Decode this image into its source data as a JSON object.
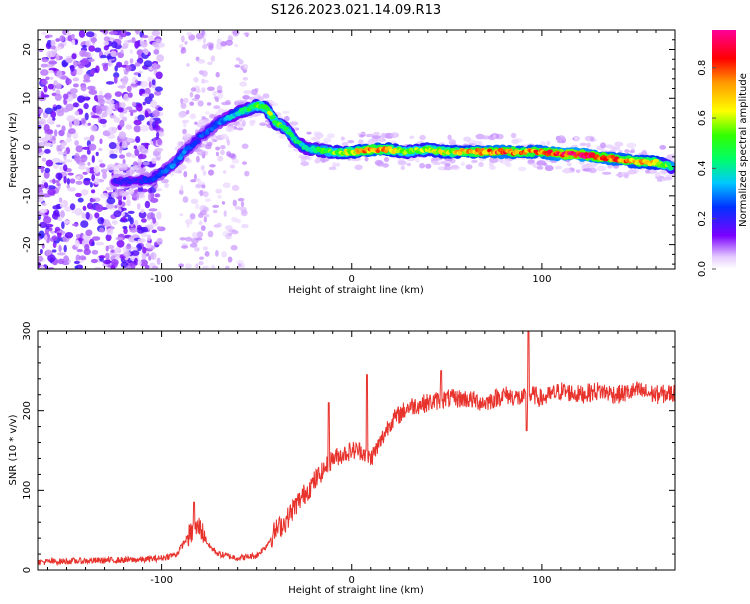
{
  "title": "S126.2023.021.14.09.R13",
  "colors": {
    "snr_line": "#e8322c",
    "ridge_low": "#5a00ff",
    "ridge_high": "#ff0033",
    "scatter": "#8a3cf0"
  },
  "chart_data": [
    {
      "type": "heatmap",
      "xlabel": "Height of straight line (km)",
      "ylabel": "Frequency (Hz)",
      "xlim": [
        -165,
        170
      ],
      "ylim": [
        -25,
        24
      ],
      "x_ticks": [
        -100,
        0,
        100
      ],
      "y_ticks": [
        -20,
        -10,
        0,
        10,
        20
      ],
      "colorbar": {
        "label": "Normalized spectral amplitude",
        "range": [
          0,
          0.95
        ],
        "ticks": [
          0.0,
          0.2,
          0.4,
          0.6,
          0.8
        ],
        "tick_labels": [
          "0.0",
          "0.2",
          "0.4",
          "0.6",
          "0.8"
        ],
        "colormap": "rainbow"
      },
      "ridge": {
        "x": [
          -125,
          -115,
          -105,
          -95,
          -88,
          -80,
          -70,
          -60,
          -50,
          -45,
          -40,
          -35,
          -30,
          -25,
          -20,
          -10,
          0,
          10,
          20,
          30,
          40,
          50,
          60,
          70,
          80,
          90,
          100,
          110,
          120,
          130,
          140,
          150,
          160,
          168
        ],
        "y": [
          -7,
          -7,
          -6.5,
          -4,
          -1,
          2,
          5,
          7,
          8.5,
          8,
          5,
          4,
          1.5,
          0,
          -0.5,
          -1,
          -1,
          -0.5,
          -0.5,
          -1,
          -0.5,
          -1,
          -1,
          -1,
          -1,
          -1,
          -1,
          -1.5,
          -1.5,
          -2,
          -2.5,
          -3,
          -3.2,
          -4
        ],
        "amplitude": [
          0.2,
          0.2,
          0.25,
          0.3,
          0.3,
          0.25,
          0.3,
          0.4,
          0.55,
          0.6,
          0.55,
          0.5,
          0.45,
          0.4,
          0.45,
          0.55,
          0.65,
          0.8,
          0.7,
          0.55,
          0.6,
          0.65,
          0.7,
          0.8,
          0.85,
          0.75,
          0.8,
          0.9,
          0.9,
          0.85,
          0.8,
          0.75,
          0.7,
          0.5
        ]
      }
    },
    {
      "type": "line",
      "xlabel": "Height of straight line (km)",
      "ylabel": "SNR (10 * v/v)",
      "xlim": [
        -165,
        170
      ],
      "ylim": [
        0,
        300
      ],
      "x_ticks": [
        -100,
        0,
        100
      ],
      "y_ticks": [
        0,
        100,
        200,
        300
      ],
      "series": [
        {
          "x": [
            -165,
            -150,
            -130,
            -110,
            -100,
            -92,
            -88,
            -85,
            -80,
            -75,
            -70,
            -60,
            -50,
            -45,
            -40,
            -35,
            -30,
            -25,
            -20,
            -15,
            -10,
            -5,
            0,
            5,
            10,
            15,
            20,
            25,
            30,
            40,
            50,
            60,
            70,
            80,
            90,
            95,
            100,
            110,
            120,
            130,
            140,
            150,
            160,
            170
          ],
          "values": [
            10,
            11,
            12,
            13,
            15,
            20,
            35,
            45,
            55,
            30,
            20,
            15,
            18,
            30,
            50,
            60,
            80,
            95,
            110,
            125,
            140,
            145,
            150,
            150,
            140,
            160,
            185,
            195,
            205,
            210,
            215,
            215,
            210,
            220,
            215,
            220,
            215,
            225,
            220,
            225,
            220,
            225,
            220,
            222
          ],
          "spikes": [
            {
              "x": -83,
              "value": 85
            },
            {
              "x": -12,
              "value": 210
            },
            {
              "x": 8,
              "value": 245
            },
            {
              "x": 47,
              "value": 250
            },
            {
              "x": 93,
              "value": 310
            },
            {
              "x": 92,
              "value": 175
            }
          ]
        }
      ]
    }
  ]
}
